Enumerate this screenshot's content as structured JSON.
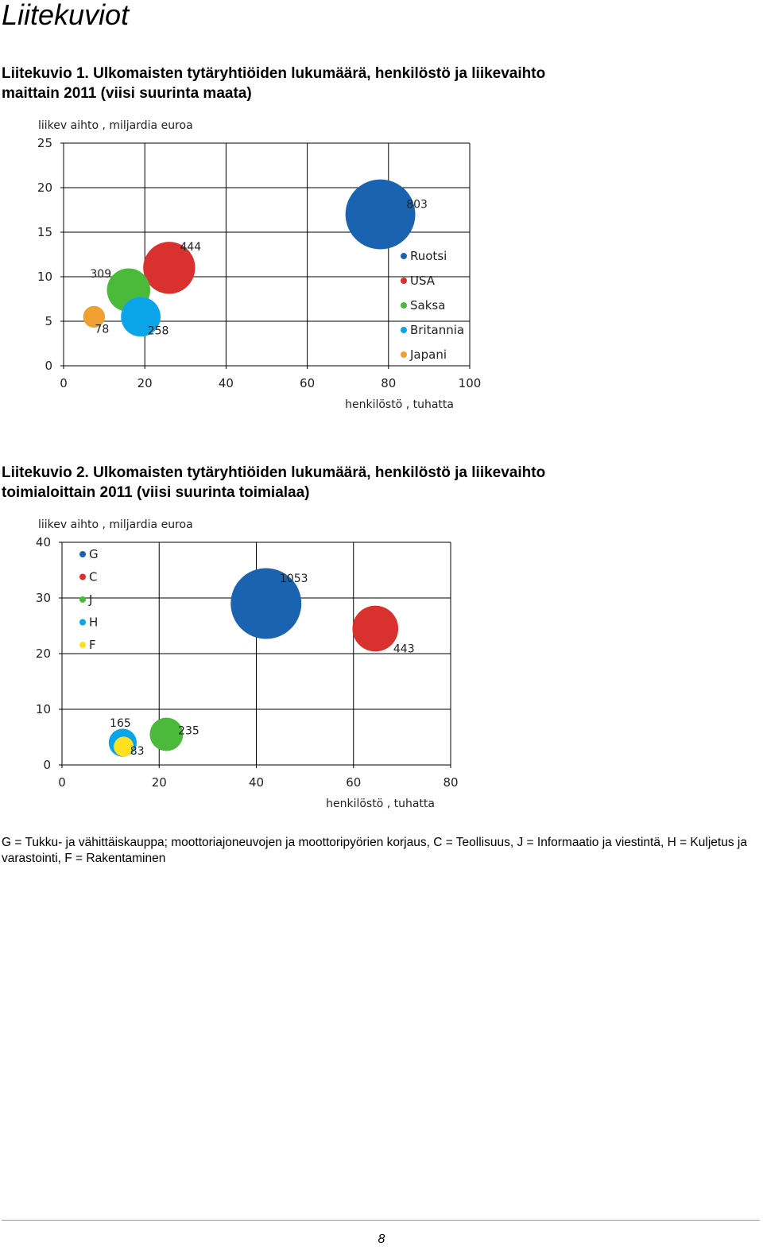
{
  "page": {
    "title": "Liitekuviot",
    "note": "G = Tukku- ja vähittäiskauppa; moottoriajoneuvojen ja moottoripyörien korjaus, C = Teollisuus, J = Informaatio ja viestintä, H = Kuljetus ja varastointi, F = Rakentaminen",
    "page_number": "8"
  },
  "figures": [
    {
      "label": "Liitekuvio 1.",
      "caption": "Ulkomaisten tytäryhtiöiden lukumäärä, henkilöstö ja liikevaihto maittain 2011 (viisi suurinta maata)"
    },
    {
      "label": "Liitekuvio 2.",
      "caption": "Ulkomaisten tytäryhtiöiden lukumäärä, henkilöstö ja liikevaihto toimialoittain 2011 (viisi suurinta toimialaa)"
    }
  ],
  "chart_data": [
    {
      "type": "scatter",
      "subtype": "bubble",
      "title": "",
      "xlabel": "henkilöstö , tuhatta",
      "ylabel": "liikev aihto , miljardia euroa",
      "xlim": [
        0,
        100
      ],
      "ylim": [
        0,
        25
      ],
      "xticks": [
        "0",
        "20",
        "40",
        "60",
        "80",
        "100"
      ],
      "yticks": [
        "0",
        "5",
        "10",
        "15",
        "20",
        "25"
      ],
      "grid": true,
      "legend_position": "right-inside",
      "series": [
        {
          "name": "Ruotsi",
          "x": 78,
          "y": 17,
          "size": 803,
          "color": "#1a63b0"
        },
        {
          "name": "USA",
          "x": 26,
          "y": 11,
          "size": 444,
          "color": "#d9312e"
        },
        {
          "name": "Saksa",
          "x": 16,
          "y": 8.5,
          "size": 309,
          "color": "#4bba3a"
        },
        {
          "name": "Britannia",
          "x": 19,
          "y": 5.5,
          "size": 258,
          "color": "#0aa5e8"
        },
        {
          "name": "Japani",
          "x": 7.5,
          "y": 5.5,
          "size": 78,
          "color": "#f0a030"
        }
      ]
    },
    {
      "type": "scatter",
      "subtype": "bubble",
      "title": "",
      "xlabel": "henkilöstö , tuhatta",
      "ylabel": "liikev aihto , miljardia euroa",
      "xlim": [
        0,
        80
      ],
      "ylim": [
        0,
        40
      ],
      "xticks": [
        "0",
        "20",
        "40",
        "60",
        "80"
      ],
      "yticks": [
        "0",
        "10",
        "20",
        "30",
        "40"
      ],
      "grid": true,
      "legend_position": "top-left-inside",
      "series": [
        {
          "name": "G",
          "x": 42,
          "y": 29,
          "size": 1053,
          "color": "#1a63b0"
        },
        {
          "name": "C",
          "x": 64.5,
          "y": 24.5,
          "size": 443,
          "color": "#d9312e"
        },
        {
          "name": "J",
          "x": 21.5,
          "y": 5.5,
          "size": 235,
          "color": "#4bba3a"
        },
        {
          "name": "H",
          "x": 12.5,
          "y": 4,
          "size": 165,
          "color": "#0aa5e8"
        },
        {
          "name": "F",
          "x": 12.7,
          "y": 3.3,
          "size": 83,
          "color": "#ffe020"
        }
      ]
    }
  ]
}
